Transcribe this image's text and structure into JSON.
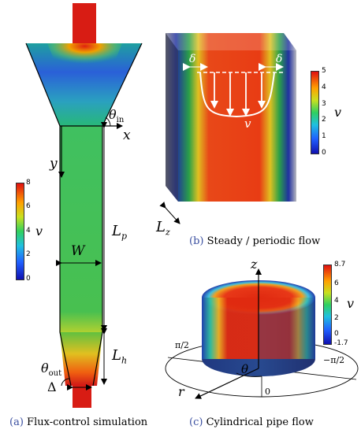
{
  "panel_a": {
    "caption_tag": "(a)",
    "caption_text": "Flux-control simulation",
    "colorbar": {
      "ticks": [
        "8",
        "6",
        "4",
        "2",
        "0"
      ],
      "var": "v"
    },
    "labels": {
      "theta_in": "θ",
      "theta_in_sub": "in",
      "x": "x",
      "y": "y",
      "L_p": "L",
      "L_p_sub": "p",
      "W": "W",
      "L_h": "L",
      "L_h_sub": "h",
      "theta_out": "θ",
      "theta_out_sub": "out",
      "delta": "Δ"
    }
  },
  "panel_b": {
    "caption_tag": "(b)",
    "caption_text": "Steady / periodic flow",
    "colorbar": {
      "ticks": [
        "5",
        "4",
        "3",
        "2",
        "1",
        "0"
      ],
      "var": "v"
    },
    "labels": {
      "delta_left": "δ",
      "delta_right": "δ",
      "v": "v",
      "L_z": "L",
      "L_z_sub": "z"
    }
  },
  "panel_c": {
    "caption_tag": "(c)",
    "caption_text": "Cylindrical pipe flow",
    "colorbar": {
      "ticks": [
        "8.7",
        "6",
        "4",
        "2",
        "0",
        "-1.7"
      ],
      "var": "v"
    },
    "labels": {
      "z": "z",
      "pi_half": "π/2",
      "neg_pi_half": "−π/2",
      "theta": "θ",
      "zero": "0",
      "r": "r"
    }
  }
}
